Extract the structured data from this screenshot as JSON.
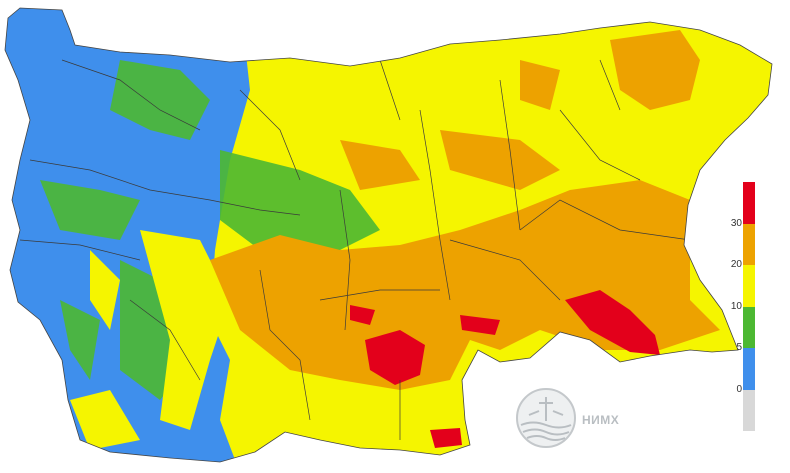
{
  "legend": {
    "colors": [
      "#e3001b",
      "#eda200",
      "#f5f500",
      "#4cb832",
      "#3f8fec",
      "#d8d8d8"
    ],
    "labels": [
      "30",
      "20",
      "10",
      "5",
      "0"
    ]
  },
  "logo": {
    "text": "НИМХ"
  },
  "map_colors": {
    "blue": "#3f8fec",
    "green": "#4cb832",
    "yellow": "#f5f500",
    "orange": "#eda200",
    "red": "#e3001b",
    "border": "#3a3a3a"
  }
}
